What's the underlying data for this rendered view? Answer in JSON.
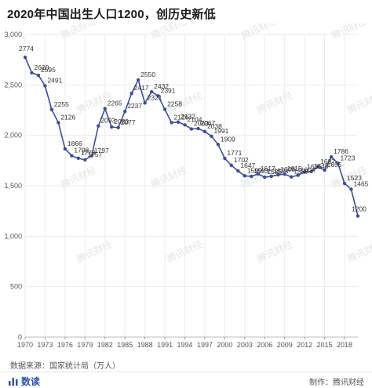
{
  "title": "2020年中国出生人口1200，创历史新低",
  "source": "数据来源：国家统计局（万人）",
  "brand": "数读",
  "credit": "制作：腾讯财经",
  "watermark": "腾讯财经",
  "colors": {
    "line": "#3a4f9c",
    "grid": "#ebebeb",
    "brand": "#2b56b3"
  },
  "chart_data": {
    "type": "line",
    "title": "2020年中国出生人口1200，创历史新低",
    "xlabel": "",
    "ylabel": "",
    "ylim": [
      0,
      3000
    ],
    "yticks": [
      0,
      500,
      1000,
      1500,
      2000,
      2500,
      3000
    ],
    "ytick_labels": [
      "0",
      "500",
      "1,000",
      "1,500",
      "2,000",
      "2,500",
      "3,000"
    ],
    "xlim": [
      1970,
      2020
    ],
    "xticks": [
      1970,
      1973,
      1976,
      1979,
      1982,
      1985,
      1988,
      1991,
      1994,
      1997,
      2000,
      2003,
      2006,
      2009,
      2012,
      2015,
      2018
    ],
    "grid": true,
    "legend": "none",
    "series": [
      {
        "x": [
          1970,
          1971,
          1972,
          1973,
          1974,
          1975,
          1976,
          1977,
          1978,
          1979,
          1980,
          1981,
          1982,
          1983,
          1984,
          1985,
          1986,
          1987,
          1988,
          1989,
          1990,
          1991,
          1992,
          1993,
          1994,
          1995,
          1996,
          1997,
          1998,
          1999,
          2000,
          2001,
          2002,
          2003,
          2004,
          2005,
          2006,
          2007,
          2008,
          2009,
          2010,
          2011,
          2012,
          2013,
          2014,
          2015,
          2016,
          2017,
          2018,
          2019,
          2020
        ],
        "values": [
          2774,
          2620,
          2595,
          2491,
          2255,
          2126,
          1866,
          1798,
          1773,
          1757,
          1797,
          2093,
          2265,
          2083,
          2077,
          2237,
          2417,
          2550,
          2321,
          2432,
          2391,
          2258,
          2126,
          2132,
          2104,
          2063,
          2067,
          2038,
          1991,
          1909,
          1771,
          1702,
          1647,
          1599,
          1593,
          1617,
          1585,
          1594,
          1608,
          1615,
          1588,
          1604,
          1635,
          1640,
          1687,
          1655,
          1786,
          1723,
          1523,
          1465,
          1200
        ],
        "labels": [
          "2774",
          "2620",
          "2595",
          "2491",
          "2255",
          "2126",
          "1866",
          "1798",
          "1773",
          "1757",
          "1797",
          "2093",
          "2265",
          "2083",
          "2077",
          "2237",
          "2417",
          "2550",
          "2321",
          "2432",
          "2391",
          "2258",
          "2126",
          "2132",
          "2104",
          "2063",
          "2067",
          "2038",
          "1991",
          "1909",
          "1771",
          "1702",
          "1647",
          "1599",
          "1593",
          "1617",
          "1585",
          "1594",
          "1608",
          "1615",
          "1588",
          "1604",
          "1635",
          "1640",
          "1687",
          "1655",
          "1786",
          "1723",
          "1523",
          "1465",
          "1200"
        ]
      }
    ]
  }
}
